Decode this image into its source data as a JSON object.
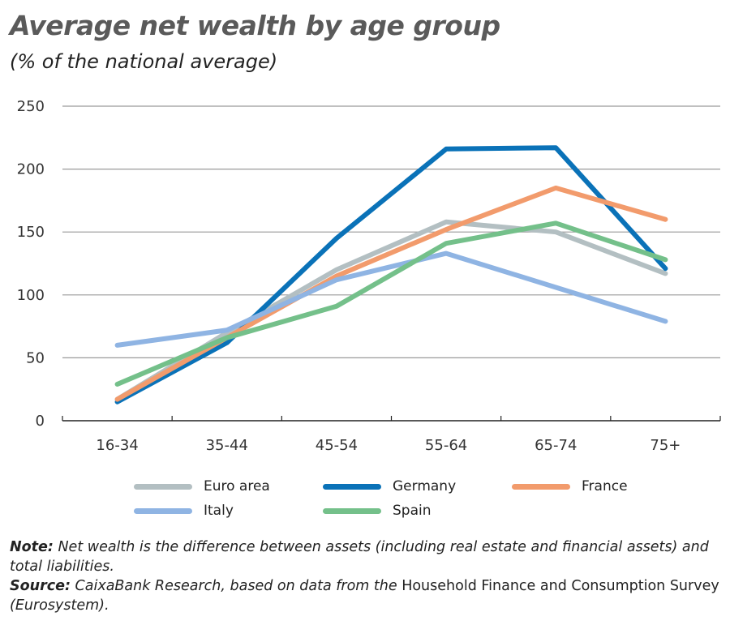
{
  "chart_data": {
    "type": "line",
    "title": "Average net wealth by age group",
    "subtitle": "(% of the national average)",
    "categories": [
      "16-34",
      "35-44",
      "45-54",
      "55-64",
      "65-74",
      "75+"
    ],
    "ylim": [
      0,
      250
    ],
    "yticks": [
      0,
      50,
      100,
      150,
      200,
      250
    ],
    "grid": true,
    "legend_position": "bottom",
    "series": [
      {
        "name": "Euro area",
        "color": "#b3bfc2",
        "values": [
          17,
          70,
          120,
          158,
          150,
          117
        ]
      },
      {
        "name": "Germany",
        "color": "#0a72b8",
        "values": [
          15,
          62,
          145,
          216,
          217,
          121
        ]
      },
      {
        "name": "France",
        "color": "#f29b6c",
        "values": [
          17,
          66,
          115,
          152,
          185,
          160
        ]
      },
      {
        "name": "Italy",
        "color": "#8fb4e3",
        "values": [
          60,
          72,
          112,
          133,
          106,
          79
        ]
      },
      {
        "name": "Spain",
        "color": "#74c08a",
        "values": [
          29,
          66,
          91,
          141,
          157,
          128
        ]
      }
    ]
  },
  "notes": {
    "note_label": "Note:",
    "note_text": " Net wealth is the difference between assets (including real estate and financial assets) and total liabilities.",
    "source_label": "Source:",
    "source_text": " CaixaBank Research, based on data from the ",
    "source_upright": "Household Finance and Consumption Survey",
    "source_end": " (Eurosystem)."
  }
}
